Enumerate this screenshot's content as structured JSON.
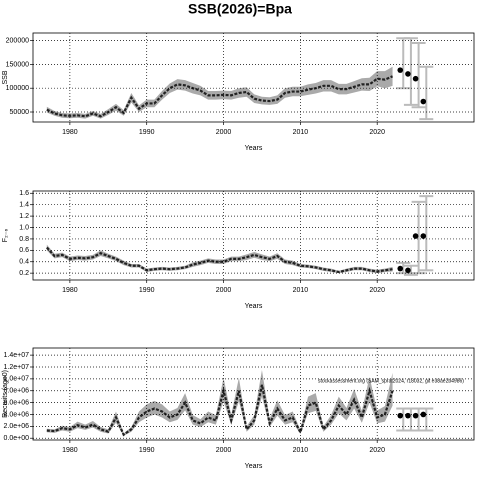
{
  "title": "SSB(2026)=Bpa",
  "chart_data": [
    {
      "type": "line",
      "xlabel": "Years",
      "ylabel": "SSB",
      "color": "#222222",
      "band_color": "#aaaaaa",
      "proj_color": "#bbbbbb",
      "grid": true,
      "xlim": [
        1975.2,
        2032.6
      ],
      "xticks": [
        1980,
        1990,
        2000,
        2010,
        2020
      ],
      "ylim": [
        29000,
        216000
      ],
      "yticks": [
        50000,
        100000,
        150000,
        200000
      ],
      "x": [
        1977,
        1978,
        1979,
        1980,
        1981,
        1982,
        1983,
        1984,
        1985,
        1986,
        1987,
        1988,
        1989,
        1990,
        1991,
        1992,
        1993,
        1994,
        1995,
        1996,
        1997,
        1998,
        1999,
        2000,
        2001,
        2002,
        2003,
        2004,
        2005,
        2006,
        2007,
        2008,
        2009,
        2010,
        2011,
        2012,
        2013,
        2014,
        2015,
        2016,
        2017,
        2018,
        2019,
        2020,
        2021,
        2022
      ],
      "values": [
        55000,
        47000,
        43000,
        42000,
        43000,
        41000,
        47000,
        41000,
        50000,
        60000,
        48000,
        80000,
        57000,
        68000,
        68000,
        85000,
        100000,
        108000,
        106000,
        100000,
        95000,
        85000,
        85000,
        86000,
        85000,
        90000,
        92000,
        78000,
        74000,
        73000,
        76000,
        90000,
        93000,
        93000,
        97000,
        100000,
        105000,
        105000,
        98000,
        98000,
        103000,
        108000,
        108000,
        120000,
        118000,
        125000
      ],
      "lower": [
        49000,
        42000,
        38000,
        37000,
        38000,
        36000,
        42000,
        36000,
        44000,
        53000,
        42000,
        70000,
        50000,
        60000,
        60000,
        76000,
        90000,
        97000,
        95000,
        89000,
        85000,
        76000,
        76000,
        77000,
        76000,
        80000,
        82000,
        69000,
        66000,
        65000,
        67000,
        80000,
        83000,
        83000,
        86000,
        89000,
        93000,
        93000,
        87000,
        87000,
        91000,
        95000,
        94000,
        104000,
        100000,
        105000
      ],
      "upper": [
        61000,
        52000,
        48000,
        47000,
        48000,
        46000,
        52000,
        46000,
        56000,
        67000,
        54000,
        90000,
        64000,
        76000,
        76000,
        94000,
        110000,
        119000,
        117000,
        111000,
        105000,
        94000,
        94000,
        95000,
        94000,
        100000,
        102000,
        87000,
        82000,
        81000,
        85000,
        100000,
        103000,
        103000,
        108000,
        111000,
        117000,
        117000,
        109000,
        109000,
        115000,
        121000,
        122000,
        136000,
        136000,
        145000
      ],
      "projection": {
        "x": [
          2023,
          2024,
          2025,
          2026
        ],
        "values": [
          138000,
          130000,
          120000,
          72000
        ],
        "lower": [
          100000,
          65000,
          60000,
          35000
        ],
        "upper": [
          205000,
          205000,
          195000,
          145000
        ]
      }
    },
    {
      "type": "line",
      "xlabel": "Years",
      "ylabel": "F₂₋₆",
      "color": "#222222",
      "band_color": "#aaaaaa",
      "proj_color": "#bbbbbb",
      "grid": true,
      "xlim": [
        1975.2,
        2032.6
      ],
      "xticks": [
        1980,
        1990,
        2000,
        2010,
        2020
      ],
      "ylim": [
        0.08,
        1.64
      ],
      "yticks": [
        0.2,
        0.4,
        0.6,
        0.8,
        {
          "value": 1,
          "label": "1.0"
        },
        1.2,
        1.4,
        1.6
      ],
      "x": [
        1977,
        1978,
        1979,
        1980,
        1981,
        1982,
        1983,
        1984,
        1985,
        1986,
        1987,
        1988,
        1989,
        1990,
        1991,
        1992,
        1993,
        1994,
        1995,
        1996,
        1997,
        1998,
        1999,
        2000,
        2001,
        2002,
        2003,
        2004,
        2005,
        2006,
        2007,
        2008,
        2009,
        2010,
        2011,
        2012,
        2013,
        2014,
        2015,
        2016,
        2017,
        2018,
        2019,
        2020,
        2021,
        2022
      ],
      "values": [
        0.65,
        0.5,
        0.52,
        0.45,
        0.47,
        0.46,
        0.48,
        0.55,
        0.5,
        0.45,
        0.38,
        0.33,
        0.33,
        0.25,
        0.27,
        0.28,
        0.27,
        0.28,
        0.3,
        0.35,
        0.38,
        0.42,
        0.4,
        0.4,
        0.45,
        0.45,
        0.48,
        0.52,
        0.48,
        0.45,
        0.5,
        0.4,
        0.38,
        0.33,
        0.32,
        0.3,
        0.27,
        0.25,
        0.22,
        0.25,
        0.28,
        0.28,
        0.25,
        0.23,
        0.25,
        0.27
      ],
      "lower": [
        0.6,
        0.46,
        0.48,
        0.41,
        0.43,
        0.42,
        0.44,
        0.5,
        0.46,
        0.41,
        0.34,
        0.3,
        0.3,
        0.22,
        0.24,
        0.25,
        0.24,
        0.25,
        0.27,
        0.31,
        0.34,
        0.38,
        0.36,
        0.36,
        0.41,
        0.41,
        0.43,
        0.47,
        0.43,
        0.41,
        0.45,
        0.36,
        0.34,
        0.3,
        0.29,
        0.27,
        0.24,
        0.22,
        0.2,
        0.22,
        0.25,
        0.25,
        0.22,
        0.2,
        0.22,
        0.23
      ],
      "upper": [
        0.7,
        0.54,
        0.56,
        0.49,
        0.51,
        0.5,
        0.52,
        0.6,
        0.54,
        0.49,
        0.42,
        0.36,
        0.36,
        0.28,
        0.3,
        0.31,
        0.3,
        0.31,
        0.33,
        0.39,
        0.42,
        0.46,
        0.44,
        0.44,
        0.49,
        0.49,
        0.53,
        0.57,
        0.53,
        0.49,
        0.55,
        0.44,
        0.42,
        0.36,
        0.35,
        0.33,
        0.3,
        0.28,
        0.24,
        0.28,
        0.31,
        0.31,
        0.28,
        0.26,
        0.28,
        0.31
      ],
      "projection": {
        "x": [
          2023,
          2024,
          2025,
          2026
        ],
        "values": [
          0.28,
          0.25,
          0.85,
          0.85
        ],
        "lower": [
          0.2,
          0.17,
          0.2,
          0.25
        ],
        "upper": [
          0.38,
          0.33,
          1.45,
          1.55
        ]
      }
    },
    {
      "type": "line",
      "xlabel": "Years",
      "ylabel": "Recruits (age0)",
      "color": "#222222",
      "band_color": "#aaaaaa",
      "proj_color": "#bbbbbb",
      "grid": true,
      "annotation": "stockassessment.org (SAM_sprat2024, r18032, git e38ae2b4986)",
      "xlim": [
        1975.2,
        2032.6
      ],
      "xticks": [
        1980,
        1990,
        2000,
        2010,
        2020
      ],
      "ylim": [
        -300000,
        15200000
      ],
      "yticks": [
        {
          "value": 0,
          "label": "0.0e+00"
        },
        {
          "value": 2000000,
          "label": "2.0e+06"
        },
        {
          "value": 4000000,
          "label": "4.0e+06"
        },
        {
          "value": 6000000,
          "label": "6.0e+06"
        },
        {
          "value": 8000000,
          "label": "8.0e+06"
        },
        {
          "value": 10000000,
          "label": "1.0e+07"
        },
        {
          "value": 12000000,
          "label": "1.2e+07"
        },
        {
          "value": 14000000,
          "label": "1.4e+07"
        }
      ],
      "x": [
        1977,
        1978,
        1979,
        1980,
        1981,
        1982,
        1983,
        1984,
        1985,
        1986,
        1987,
        1988,
        1989,
        1990,
        1991,
        1992,
        1993,
        1994,
        1995,
        1996,
        1997,
        1998,
        1999,
        2000,
        2001,
        2002,
        2003,
        2004,
        2005,
        2006,
        2007,
        2008,
        2009,
        2010,
        2011,
        2012,
        2013,
        2014,
        2015,
        2016,
        2017,
        2018,
        2019,
        2020,
        2021,
        2022
      ],
      "values": [
        1300000,
        1200000,
        1700000,
        1500000,
        2200000,
        1800000,
        2300000,
        1500000,
        1100000,
        3500000,
        600000,
        1500000,
        3500000,
        4500000,
        5000000,
        4500000,
        3500000,
        4000000,
        6000000,
        3000000,
        2500000,
        3500000,
        3000000,
        8000000,
        3000000,
        8000000,
        1500000,
        3000000,
        9000000,
        2500000,
        5000000,
        3000000,
        3500000,
        1000000,
        5500000,
        6000000,
        1500000,
        3000000,
        5500000,
        4000000,
        6500000,
        3500000,
        8000000,
        3500000,
        4000000,
        8000000
      ],
      "lower": [
        1000000,
        900000,
        1300000,
        1100000,
        1700000,
        1400000,
        1800000,
        1100000,
        800000,
        2600000,
        400000,
        1100000,
        2700000,
        3500000,
        4000000,
        3500000,
        2700000,
        3100000,
        4700000,
        2300000,
        1900000,
        2700000,
        2300000,
        6200000,
        2300000,
        6200000,
        1100000,
        2300000,
        7000000,
        1900000,
        3800000,
        2300000,
        2700000,
        700000,
        4200000,
        4600000,
        1100000,
        2300000,
        4200000,
        3000000,
        5000000,
        2600000,
        6000000,
        2500000,
        2800000,
        5500000
      ],
      "upper": [
        1600000,
        1500000,
        2100000,
        1900000,
        2800000,
        2300000,
        2900000,
        1900000,
        1500000,
        4500000,
        800000,
        1900000,
        4500000,
        5700000,
        6300000,
        5700000,
        4500000,
        5100000,
        7600000,
        3900000,
        3200000,
        4500000,
        3900000,
        10200000,
        3900000,
        10200000,
        2000000,
        3900000,
        11500000,
        3300000,
        6400000,
        3900000,
        4500000,
        1400000,
        7000000,
        7600000,
        2000000,
        3900000,
        7000000,
        5100000,
        8300000,
        4600000,
        10300000,
        4700000,
        5400000,
        11000000
      ],
      "projection": {
        "x": [
          2023,
          2024,
          2025,
          2026
        ],
        "values": [
          3800000,
          3800000,
          3800000,
          4000000
        ],
        "lower": [
          1300000,
          1300000,
          1300000,
          1300000
        ],
        "upper": [
          5000000,
          5000000,
          5000000,
          5000000
        ]
      }
    }
  ]
}
